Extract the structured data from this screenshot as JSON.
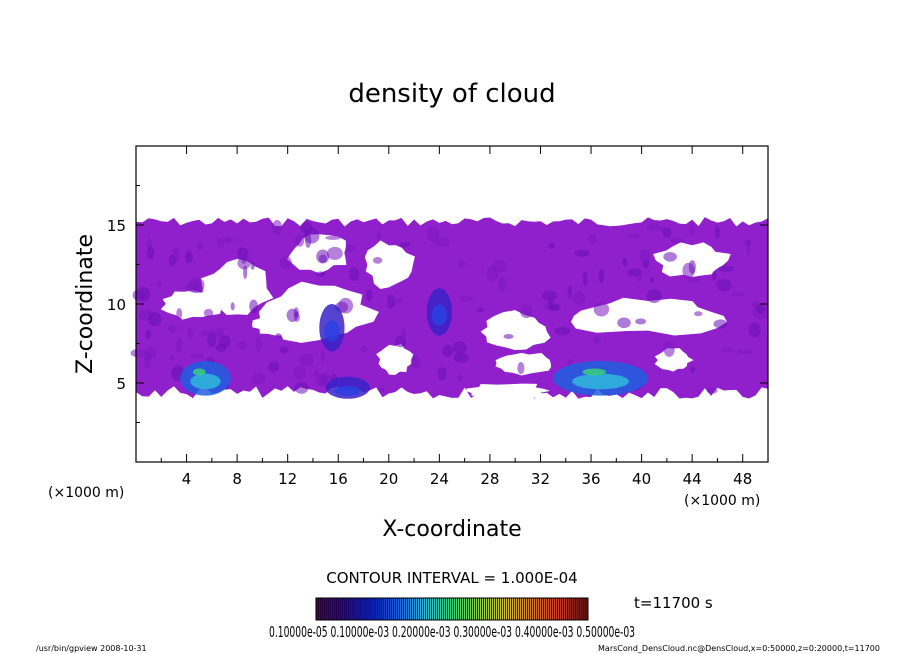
{
  "chart_data": {
    "type": "heatmap",
    "title": "density of cloud",
    "xlabel": "X-coordinate",
    "ylabel": "Z-coordinate",
    "x_unit": "(×1000 m)",
    "y_unit": "(×1000 m)",
    "xlim": [
      0,
      50
    ],
    "ylim": [
      0,
      20
    ],
    "x_ticks": [
      "4",
      "8",
      "12",
      "16",
      "20",
      "24",
      "28",
      "32",
      "36",
      "40",
      "44",
      "48"
    ],
    "y_ticks": [
      "5",
      "10",
      "15"
    ],
    "grid": false,
    "contour_interval_text": "CONTOUR INTERVAL = 1.000E-04",
    "time_text": "t=11700 s",
    "colorbar_labels_text": "0.10000e-05 0.10000e-03 0.20000e-03 0.30000e-03 0.40000e-03 0.50000e-03",
    "colormap": [
      "#2a0030",
      "#1b005a",
      "#0a1aa8",
      "#1e5fe0",
      "#2fb8d8",
      "#3ad27a",
      "#8fd24a",
      "#d2c23a",
      "#d27a2a",
      "#c83a28",
      "#5a1010"
    ],
    "background_color": "#8a14c8",
    "cloud_regions": [
      {
        "x_start": 0,
        "x_end": 50,
        "z_bottom": 4,
        "z_top": 15.5,
        "level": "low"
      },
      {
        "x_start": 3.5,
        "x_end": 7.5,
        "z_bottom": 4.2,
        "z_top": 6.4,
        "level": "high"
      },
      {
        "x_start": 15,
        "x_end": 18.5,
        "z_bottom": 4,
        "z_top": 5.4,
        "level": "medium"
      },
      {
        "x_start": 14.5,
        "x_end": 16.5,
        "z_bottom": 7,
        "z_top": 10,
        "level": "medium"
      },
      {
        "x_start": 23,
        "x_end": 25,
        "z_bottom": 8,
        "z_top": 11,
        "level": "medium"
      },
      {
        "x_start": 33,
        "x_end": 40.5,
        "z_bottom": 4.2,
        "z_top": 6.4,
        "level": "high"
      }
    ]
  },
  "footer": {
    "program": "/usr/bin/gpview   2008-10-31",
    "source": "MarsCond_DensCloud.nc@DensCloud,x=0:50000,z=0:20000,t=11700"
  }
}
